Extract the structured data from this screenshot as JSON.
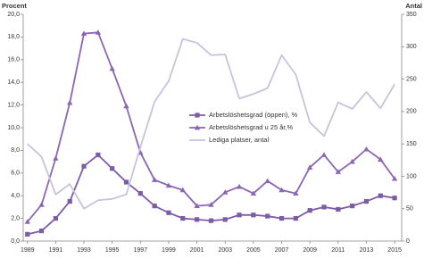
{
  "chart_data": {
    "type": "line",
    "y_label": "Procent",
    "y2_label": "Antal",
    "x": [
      1989,
      1990,
      1991,
      1992,
      1993,
      1994,
      1995,
      1996,
      1997,
      1998,
      1999,
      2000,
      2001,
      2002,
      2003,
      2004,
      2005,
      2006,
      2007,
      2008,
      2009,
      2010,
      2011,
      2012,
      2013,
      2014,
      2015
    ],
    "xlim": [
      1988.7,
      2015.5
    ],
    "xticks": [
      1989,
      1991,
      1993,
      1995,
      1997,
      1999,
      2001,
      2003,
      2005,
      2007,
      2009,
      2011,
      2013,
      2015
    ],
    "ylim": [
      0,
      20
    ],
    "yticks": [
      {
        "value": 0,
        "label": "0,0"
      },
      {
        "value": 2,
        "label": "2,0"
      },
      {
        "value": 4,
        "label": "4,0"
      },
      {
        "value": 6,
        "label": "6,0"
      },
      {
        "value": 8,
        "label": "8,0"
      },
      {
        "value": 10,
        "label": "10,0"
      },
      {
        "value": 12,
        "label": "12,0"
      },
      {
        "value": 14,
        "label": "14,0"
      },
      {
        "value": 16,
        "label": "16,0"
      },
      {
        "value": 18,
        "label": "18,0"
      },
      {
        "value": 20,
        "label": "20,0"
      }
    ],
    "y2lim": [
      0,
      350
    ],
    "y2ticks": [
      0,
      50,
      100,
      150,
      200,
      250,
      300,
      350
    ],
    "grid": false,
    "legend": "center",
    "series": [
      {
        "name": "Arbetslöshetsgrad (öppen), %",
        "color": "#7d5ba6",
        "marker": "square",
        "values": [
          0.6,
          0.9,
          2.0,
          3.5,
          6.6,
          7.6,
          6.4,
          5.2,
          4.2,
          3.1,
          2.5,
          2.0,
          1.9,
          1.8,
          1.9,
          2.3,
          2.3,
          2.2,
          2.0,
          2.0,
          2.7,
          3.0,
          2.8,
          3.1,
          3.5,
          4.0,
          3.8
        ]
      },
      {
        "name": "Arbetslöshetsgrad u 25 år,%",
        "color": "#8a66b3",
        "marker": "triangle",
        "values": [
          1.7,
          3.2,
          7.3,
          12.2,
          18.3,
          18.4,
          15.2,
          11.9,
          7.8,
          5.4,
          4.9,
          4.5,
          3.1,
          3.2,
          4.3,
          4.8,
          4.2,
          5.3,
          4.5,
          4.2,
          6.5,
          7.6,
          6.1,
          7.0,
          8.1,
          7.2,
          5.5
        ]
      },
      {
        "name": "Lediga platser, antal",
        "color": "#c8c2dc",
        "marker": "none",
        "axis": "y2",
        "values": [
          150,
          130,
          72,
          88,
          50,
          63,
          65,
          72,
          145,
          215,
          247,
          312,
          306,
          287,
          288,
          220,
          227,
          236,
          287,
          257,
          183,
          162,
          214,
          204,
          230,
          205,
          242
        ]
      }
    ]
  }
}
